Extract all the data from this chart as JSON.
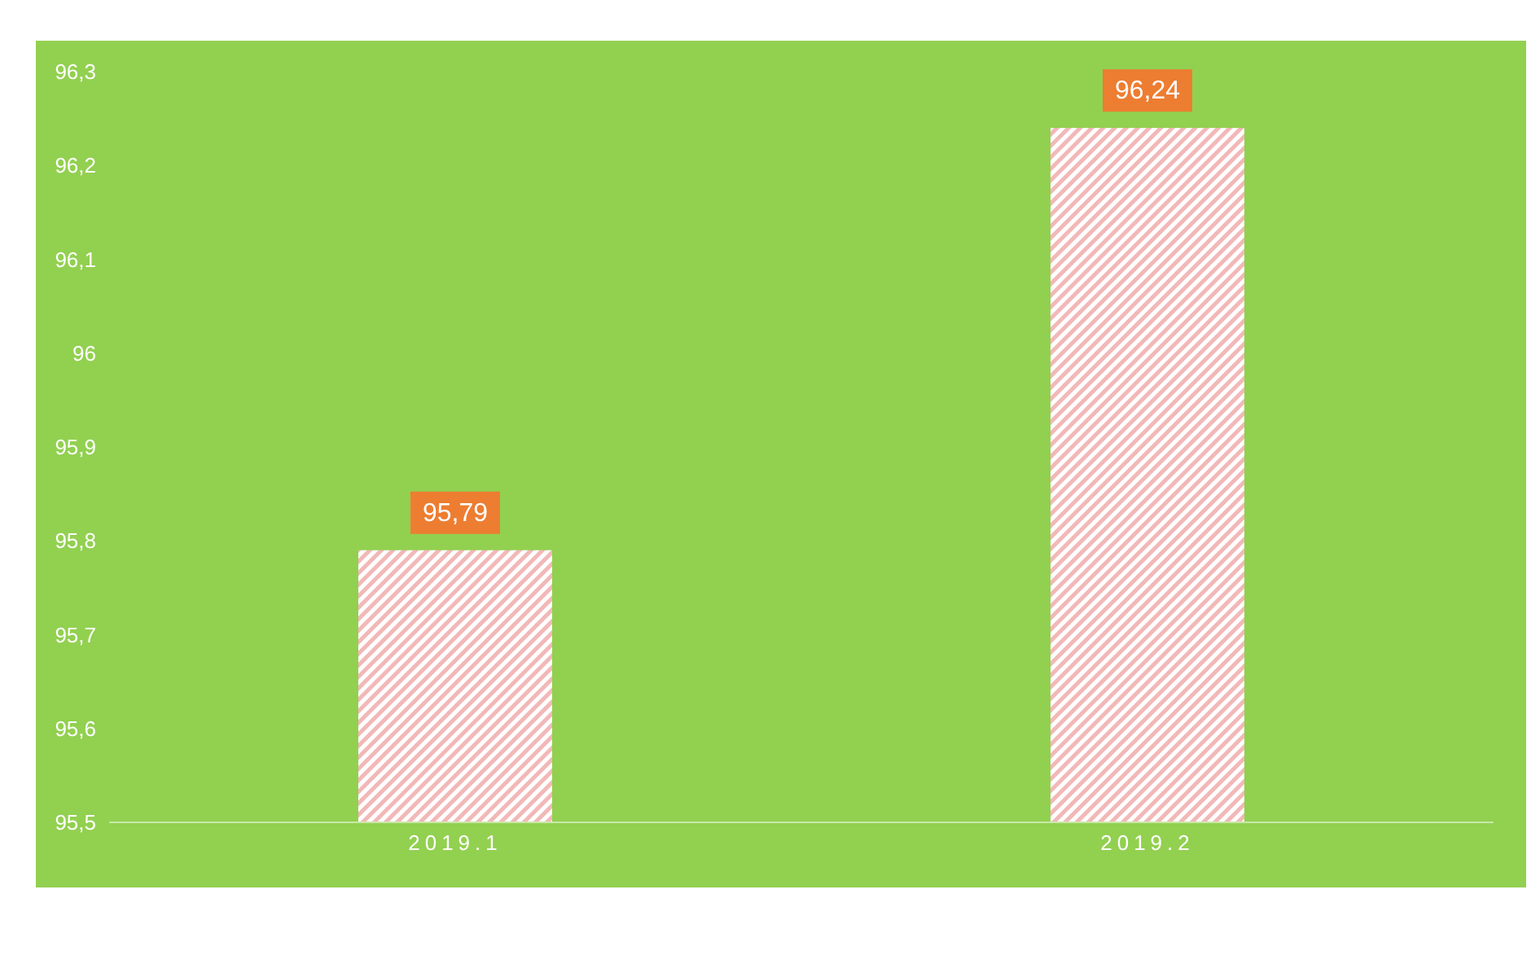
{
  "chart_data": {
    "type": "bar",
    "categories": [
      "2019.1",
      "2019.2"
    ],
    "values": [
      95.79,
      96.24
    ],
    "color": "#f2b8b8",
    "value_labels": [
      "95,79",
      "96,24"
    ],
    "ylim": [
      95.5,
      96.3
    ],
    "yticks": [
      {
        "value": 95.5,
        "label": "95,5"
      },
      {
        "value": 95.6,
        "label": "95,6"
      },
      {
        "value": 95.7,
        "label": "95,7"
      },
      {
        "value": 95.8,
        "label": "95,8"
      },
      {
        "value": 95.9,
        "label": "95,9"
      },
      {
        "value": 96,
        "label": "96"
      },
      {
        "value": 96.1,
        "label": "96,1"
      },
      {
        "value": 96.2,
        "label": "96,2"
      },
      {
        "value": 96.3,
        "label": "96,3"
      }
    ]
  }
}
